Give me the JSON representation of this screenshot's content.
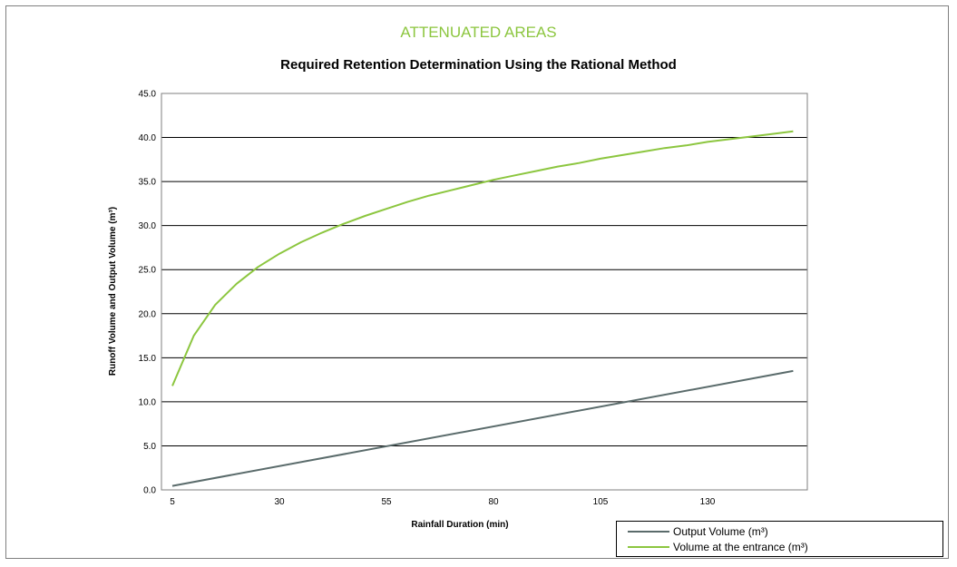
{
  "chart_data": {
    "type": "line",
    "supertitle": "ATTENUATED AREAS",
    "title": "Required Retention Determination Using the Rational Method",
    "xlabel": "Rainfall Duration (min)",
    "ylabel": "Runoff Volume and Output Volume (m³)",
    "xlim": [
      5,
      150
    ],
    "ylim": [
      0,
      45
    ],
    "xticks": [
      "5",
      "30",
      "55",
      "80",
      "105",
      "130"
    ],
    "yticks": [
      "0.0",
      "5.0",
      "10.0",
      "15.0",
      "20.0",
      "25.0",
      "30.0",
      "35.0",
      "40.0",
      "45.0"
    ],
    "grid": "horizontal",
    "legend_position": "bottom-right",
    "series": [
      {
        "name": "Output Volume (m³)",
        "color": "#5a6b6b",
        "x": [
          5,
          150
        ],
        "y": [
          0.45,
          13.5
        ]
      },
      {
        "name": "Volume at the entrance  (m³)",
        "color": "#8cc63f",
        "x": [
          5,
          10,
          15,
          20,
          25,
          30,
          35,
          40,
          45,
          50,
          55,
          60,
          65,
          70,
          75,
          80,
          85,
          90,
          95,
          100,
          105,
          110,
          115,
          120,
          125,
          130,
          135,
          140,
          145,
          150
        ],
        "y": [
          11.8,
          17.5,
          21.0,
          23.4,
          25.3,
          26.8,
          28.1,
          29.2,
          30.2,
          31.1,
          31.9,
          32.7,
          33.4,
          34.0,
          34.6,
          35.2,
          35.7,
          36.2,
          36.7,
          37.1,
          37.6,
          38.0,
          38.4,
          38.8,
          39.1,
          39.5,
          39.8,
          40.1,
          40.4,
          40.7
        ]
      }
    ]
  }
}
